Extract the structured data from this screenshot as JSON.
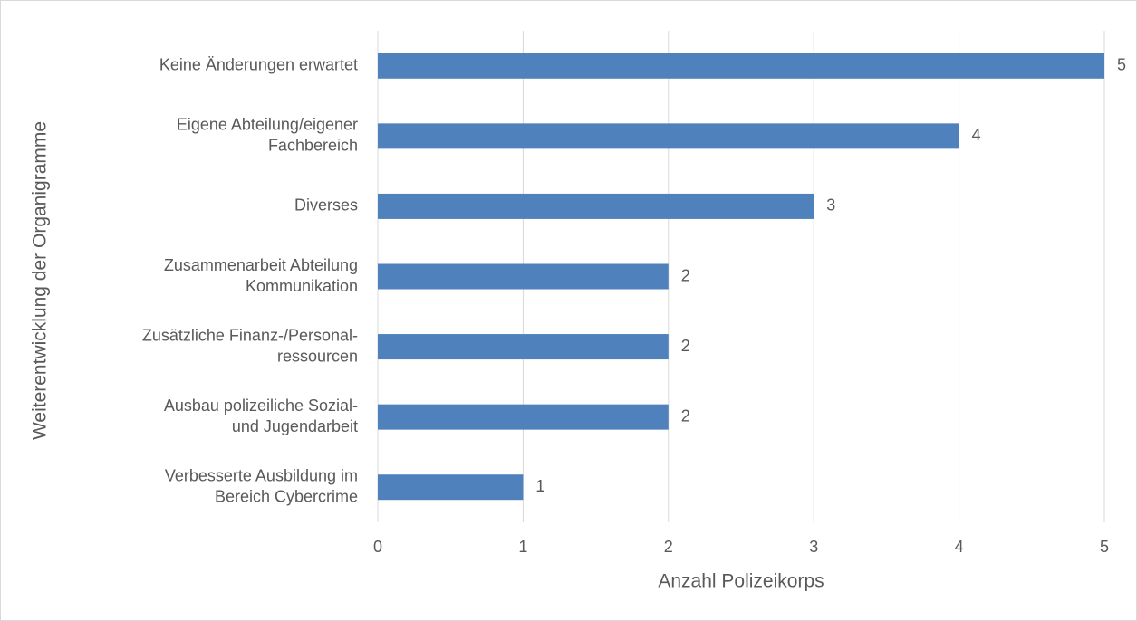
{
  "chart_data": {
    "type": "barh",
    "xlabel": "Anzahl Polizeikorps",
    "ylabel": "Weiterentwicklung der Organigramme",
    "categories": [
      [
        "Keine Änderungen erwartet"
      ],
      [
        "Eigene Abteilung/eigener",
        "Fachbereich"
      ],
      [
        "Diverses"
      ],
      [
        "Zusammenarbeit Abteilung",
        "Kommunikation"
      ],
      [
        "Zusätzliche Finanz-/Personal-",
        "ressourcen"
      ],
      [
        "Ausbau polizeiliche Sozial-",
        "und Jugendarbeit"
      ],
      [
        "Verbesserte Ausbildung im",
        "Bereich Cybercrime"
      ]
    ],
    "values": [
      5,
      4,
      3,
      2,
      2,
      2,
      1
    ],
    "color": "#4f81bd",
    "xlim": [
      0,
      5
    ],
    "xticks": [
      0,
      1,
      2,
      3,
      4,
      5
    ],
    "grid": true
  }
}
